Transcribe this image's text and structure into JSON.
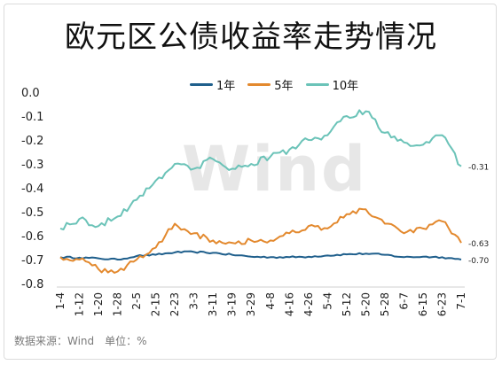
{
  "title": "欧元区公债收益率走势情况",
  "source": "数据来源：Wind　单位：%",
  "watermark": "Wind",
  "chart_data": {
    "type": "line",
    "ylim": [
      -0.8,
      0.0
    ],
    "yticks": [
      "0.0",
      "-0.1",
      "-0.2",
      "-0.3",
      "-0.4",
      "-0.5",
      "-0.6",
      "-0.7",
      "-0.8"
    ],
    "xticks": [
      "1-4",
      "1-12",
      "1-20",
      "1-28",
      "2-5",
      "2-15",
      "2-23",
      "3-3",
      "3-11",
      "3-19",
      "3-29",
      "4-8",
      "4-16",
      "4-26",
      "5-4",
      "5-12",
      "5-20",
      "5-28",
      "6-7",
      "6-15",
      "6-23",
      "7-1"
    ],
    "grid": false,
    "legend_position": "top",
    "series": [
      {
        "name": "1年",
        "color": "#1f5f8c",
        "end_label": "-0.70",
        "points": [
          [
            "1-4",
            -0.69
          ],
          [
            "1-12",
            -0.692
          ],
          [
            "1-20",
            -0.695
          ],
          [
            "1-28",
            -0.7
          ],
          [
            "2-5",
            -0.685
          ],
          [
            "2-15",
            -0.68
          ],
          [
            "2-23",
            -0.67
          ],
          [
            "3-3",
            -0.668
          ],
          [
            "3-11",
            -0.672
          ],
          [
            "3-19",
            -0.68
          ],
          [
            "3-29",
            -0.688
          ],
          [
            "4-8",
            -0.69
          ],
          [
            "4-16",
            -0.69
          ],
          [
            "4-26",
            -0.688
          ],
          [
            "5-4",
            -0.683
          ],
          [
            "5-12",
            -0.678
          ],
          [
            "5-20",
            -0.675
          ],
          [
            "5-28",
            -0.68
          ],
          [
            "6-7",
            -0.69
          ],
          [
            "6-15",
            -0.688
          ],
          [
            "6-23",
            -0.69
          ],
          [
            "7-1",
            -0.7
          ]
        ]
      },
      {
        "name": "5年",
        "color": "#e3892e",
        "end_label": "-0.63",
        "points": [
          [
            "1-4",
            -0.69
          ],
          [
            "1-12",
            -0.7
          ],
          [
            "1-20",
            -0.74
          ],
          [
            "1-28",
            -0.75
          ],
          [
            "2-5",
            -0.7
          ],
          [
            "2-15",
            -0.65
          ],
          [
            "2-23",
            -0.55
          ],
          [
            "3-3",
            -0.59
          ],
          [
            "3-11",
            -0.62
          ],
          [
            "3-19",
            -0.63
          ],
          [
            "3-29",
            -0.62
          ],
          [
            "4-8",
            -0.62
          ],
          [
            "4-16",
            -0.59
          ],
          [
            "4-26",
            -0.56
          ],
          [
            "5-4",
            -0.57
          ],
          [
            "5-12",
            -0.51
          ],
          [
            "5-20",
            -0.49
          ],
          [
            "5-28",
            -0.55
          ],
          [
            "6-7",
            -0.59
          ],
          [
            "6-15",
            -0.57
          ],
          [
            "6-23",
            -0.54
          ],
          [
            "7-1",
            -0.63
          ]
        ]
      },
      {
        "name": "10年",
        "color": "#6bc3b8",
        "end_label": "-0.31",
        "points": [
          [
            "1-4",
            -0.57
          ],
          [
            "1-12",
            -0.53
          ],
          [
            "1-20",
            -0.56
          ],
          [
            "1-28",
            -0.52
          ],
          [
            "2-5",
            -0.45
          ],
          [
            "2-15",
            -0.37
          ],
          [
            "2-23",
            -0.3
          ],
          [
            "3-3",
            -0.32
          ],
          [
            "3-11",
            -0.28
          ],
          [
            "3-19",
            -0.32
          ],
          [
            "3-29",
            -0.3
          ],
          [
            "4-8",
            -0.27
          ],
          [
            "4-16",
            -0.24
          ],
          [
            "4-26",
            -0.2
          ],
          [
            "5-4",
            -0.18
          ],
          [
            "5-12",
            -0.1
          ],
          [
            "5-20",
            -0.08
          ],
          [
            "5-28",
            -0.17
          ],
          [
            "6-7",
            -0.21
          ],
          [
            "6-15",
            -0.22
          ],
          [
            "6-23",
            -0.18
          ],
          [
            "7-1",
            -0.31
          ]
        ]
      }
    ]
  }
}
